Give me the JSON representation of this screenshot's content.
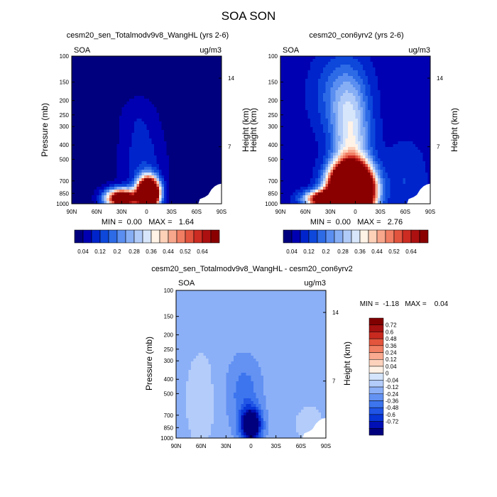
{
  "figure_title": "SOA SON",
  "colors": {
    "seq": [
      "#00007f",
      "#0000b2",
      "#0024cc",
      "#0d48db",
      "#2d6ae6",
      "#5a8ef0",
      "#86aef5",
      "#b1cbf8",
      "#d8e6fb",
      "#fff2e6",
      "#fdd0b8",
      "#f8a68c",
      "#f17d63",
      "#e3543e",
      "#cc2c22",
      "#ad1010",
      "#8a0000"
    ],
    "diff": [
      "#00007f",
      "#0010b5",
      "#0735d6",
      "#2055e6",
      "#3d75ee",
      "#6392f3",
      "#8cb0f7",
      "#b3ccfa",
      "#d3e4fc",
      "#fff1e6",
      "#fdd2bd",
      "#f9aa90",
      "#f17f63",
      "#e3553d",
      "#c92a1f",
      "#a51010",
      "#800000"
    ]
  },
  "chart_data": [
    {
      "type": "heatmap",
      "title": "cesm20_sen_Totalmodv9v8_WangHL (yrs 2-6)",
      "left_label": "SOA",
      "right_label": "ug/m3",
      "ylabel": "Pressure (mb)",
      "ylabel_right": "Height (km)",
      "x_ticks": [
        "90N",
        "60N",
        "30N",
        "0",
        "30S",
        "60S",
        "90S"
      ],
      "x_range": [
        90,
        -90
      ],
      "y_ticks": [
        100,
        150,
        200,
        250,
        300,
        400,
        500,
        700,
        850,
        1000
      ],
      "y_range": [
        100,
        1000
      ],
      "height_ticks": [
        {
          "label": "14",
          "p": 141
        },
        {
          "label": "7",
          "p": 411
        }
      ],
      "min_max_text": "MIN =  0.00   MAX =   1.64",
      "colorbar_labels": [
        "0.04",
        "0.12",
        "0.2",
        "0.28",
        "0.36",
        "0.44",
        "0.52",
        "0.64"
      ],
      "model": {
        "background": 0.02,
        "blobs": [
          {
            "lat": -2,
            "p": 850,
            "sx": 12,
            "sy": 0.22,
            "amp": 1.6
          },
          {
            "lat": 30,
            "p": 920,
            "sx": 18,
            "sy": 0.14,
            "amp": 0.9
          },
          {
            "lat": 5,
            "p": 520,
            "sx": 25,
            "sy": 0.55,
            "amp": 0.09
          },
          {
            "lat": 10,
            "p": 260,
            "sx": 22,
            "sy": 0.35,
            "amp": 0.04
          }
        ]
      }
    },
    {
      "type": "heatmap",
      "title": "cesm20_con6yrv2 (yrs 2-6)",
      "left_label": "SOA",
      "right_label": "ug/m3",
      "ylabel": "Height (km)",
      "ylabel_right": "Height (km)",
      "x_ticks": [
        "90N",
        "60N",
        "30N",
        "0",
        "30S",
        "60S",
        "90S"
      ],
      "x_range": [
        90,
        -90
      ],
      "y_ticks": [
        100,
        150,
        200,
        250,
        300,
        400,
        500,
        700,
        850,
        1000
      ],
      "y_range": [
        100,
        1000
      ],
      "height_ticks": [
        {
          "label": "14",
          "p": 141
        },
        {
          "label": "7",
          "p": 411
        }
      ],
      "min_max_text": "MIN =  0.00   MAX =   2.76",
      "colorbar_labels": [
        "0.04",
        "0.12",
        "0.2",
        "0.28",
        "0.36",
        "0.44",
        "0.52",
        "0.64"
      ],
      "model": {
        "background": 0.06,
        "blobs": [
          {
            "lat": 5,
            "p": 820,
            "sx": 22,
            "sy": 0.35,
            "amp": 2.6
          },
          {
            "lat": 35,
            "p": 930,
            "sx": 22,
            "sy": 0.12,
            "amp": 0.9
          },
          {
            "lat": 5,
            "p": 380,
            "sx": 22,
            "sy": 0.85,
            "amp": 0.28
          },
          {
            "lat": 20,
            "p": 180,
            "sx": 30,
            "sy": 0.6,
            "amp": 0.12
          },
          {
            "lat": -60,
            "p": 700,
            "sx": 25,
            "sy": 0.6,
            "amp": 0.06
          }
        ]
      }
    },
    {
      "type": "heatmap",
      "title": "cesm20_sen_Totalmodv9v8_WangHL - cesm20_con6yrv2",
      "left_label": "SOA",
      "right_label": "ug/m3",
      "ylabel": "Pressure (mb)",
      "ylabel_right": "Height (km)",
      "x_ticks": [
        "90N",
        "60N",
        "30N",
        "0",
        "30S",
        "60S",
        "90S"
      ],
      "x_range": [
        90,
        -90
      ],
      "y_ticks": [
        100,
        150,
        200,
        250,
        300,
        400,
        500,
        700,
        850,
        1000
      ],
      "y_range": [
        100,
        1000
      ],
      "height_ticks": [
        {
          "label": "14",
          "p": 141
        },
        {
          "label": "7",
          "p": 411
        }
      ],
      "min_max_text": "MIN =  -1.18   MAX =    0.04",
      "colorbar_labels": [
        "0.72",
        "0.6",
        "0.48",
        "0.36",
        "0.24",
        "0.12",
        "0.04",
        "0",
        "-0.04",
        "-0.12",
        "-0.24",
        "-0.36",
        "-0.48",
        "-0.6",
        "-0.72"
      ],
      "model": {
        "background": -0.06,
        "blobs": [
          {
            "lat": 0,
            "p": 820,
            "sx": 12,
            "sy": 0.25,
            "amp": -1.1
          },
          {
            "lat": 8,
            "p": 500,
            "sx": 20,
            "sy": 0.55,
            "amp": -0.25
          },
          {
            "lat": 60,
            "p": 550,
            "sx": 20,
            "sy": 0.8,
            "amp": 0.045
          },
          {
            "lat": -70,
            "p": 800,
            "sx": 18,
            "sy": 0.3,
            "amp": 0.045
          }
        ]
      }
    }
  ]
}
